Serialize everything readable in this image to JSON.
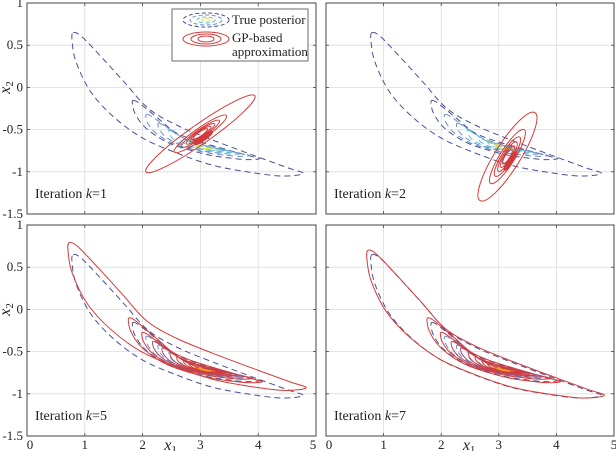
{
  "chart_data": {
    "type": "contour",
    "title": "",
    "xlabel": "x1",
    "ylabel": "x2",
    "xlim": [
      0,
      5
    ],
    "ylim": [
      -1.5,
      1
    ],
    "xticks": [
      0,
      1,
      2,
      3,
      4,
      5
    ],
    "xtick_labels": [
      "0",
      "1",
      "2",
      "3",
      "4",
      "5"
    ],
    "yticks": [
      1,
      0.5,
      0,
      -0.5,
      -1,
      -1.5
    ],
    "ytick_labels": [
      "1",
      "0.5",
      "0",
      "-0.5",
      "-1",
      "-1.5"
    ],
    "grid": true,
    "layout": "2x2",
    "legend": {
      "placement": "top-right of first panel",
      "entries": [
        {
          "label": "True posterior",
          "style": "dashed",
          "colors": [
            "#4a4f9c",
            "#5fb7d6",
            "#e7e04a"
          ]
        },
        {
          "label_line1": "GP-based",
          "label_line2": "approximation",
          "style": "solid",
          "colors": [
            "#d43a3a"
          ]
        }
      ]
    },
    "colors": {
      "true_outer": "#4a5196",
      "true_mid": "#6a8fc8",
      "true_inner": "#5bbfd8",
      "true_core": "#e4dd3c",
      "gp": "#d43a3a",
      "gp_core": "#f0a030",
      "grid": "#dcdcdc",
      "axis": "#444444"
    },
    "true_posterior": {
      "description": "Banana-shaped posterior, mode near (3.1, -0.7)",
      "outer_contour": [
        [
          0.8,
          0.65
        ],
        [
          0.95,
          0.6
        ],
        [
          1.3,
          0.35
        ],
        [
          1.7,
          0.05
        ],
        [
          2.1,
          -0.25
        ],
        [
          2.6,
          -0.45
        ],
        [
          3.2,
          -0.62
        ],
        [
          3.9,
          -0.8
        ],
        [
          4.5,
          -0.95
        ],
        [
          4.78,
          -1.02
        ],
        [
          4.4,
          -1.05
        ],
        [
          3.8,
          -1.0
        ],
        [
          3.2,
          -0.92
        ],
        [
          2.6,
          -0.78
        ],
        [
          2.0,
          -0.6
        ],
        [
          1.5,
          -0.35
        ],
        [
          1.1,
          -0.05
        ],
        [
          0.85,
          0.3
        ],
        [
          0.78,
          0.55
        ]
      ],
      "mode": [
        3.1,
        -0.72
      ]
    },
    "panels": [
      {
        "label_prefix": "Iteration ",
        "label_k": "k",
        "label_eq": "=1",
        "iteration": 1,
        "show_legend": true,
        "gp": {
          "center": [
            3.0,
            -0.55
          ],
          "angle_deg": -35,
          "semi_axes": [
            [
              1.15,
              0.17
            ],
            [
              0.55,
              0.1
            ],
            [
              0.4,
              0.075
            ],
            [
              0.3,
              0.06
            ],
            [
              0.22,
              0.045
            ],
            [
              0.15,
              0.035
            ]
          ]
        }
      },
      {
        "label_prefix": "Iteration ",
        "label_k": "k",
        "label_eq": "=2",
        "iteration": 2,
        "show_legend": false,
        "gp": {
          "center": [
            3.15,
            -0.82
          ],
          "angle_deg": -58,
          "semi_axes": [
            [
              0.9,
              0.22
            ],
            [
              0.55,
              0.13
            ],
            [
              0.4,
              0.1
            ],
            [
              0.3,
              0.075
            ],
            [
              0.22,
              0.055
            ],
            [
              0.15,
              0.04
            ]
          ]
        }
      },
      {
        "label_prefix": "Iteration ",
        "label_k": "k",
        "label_eq": "=5",
        "iteration": 5,
        "show_legend": false,
        "gp": {
          "type": "banana",
          "outer_x_shift": 0.0,
          "outer_y_shift": 0.2
        }
      },
      {
        "label_prefix": "Iteration ",
        "label_k": "k",
        "label_eq": "=7",
        "iteration": 7,
        "show_legend": false,
        "gp": {
          "type": "banana",
          "outer_x_shift": 0.0,
          "outer_y_shift": 0.02
        }
      }
    ]
  }
}
